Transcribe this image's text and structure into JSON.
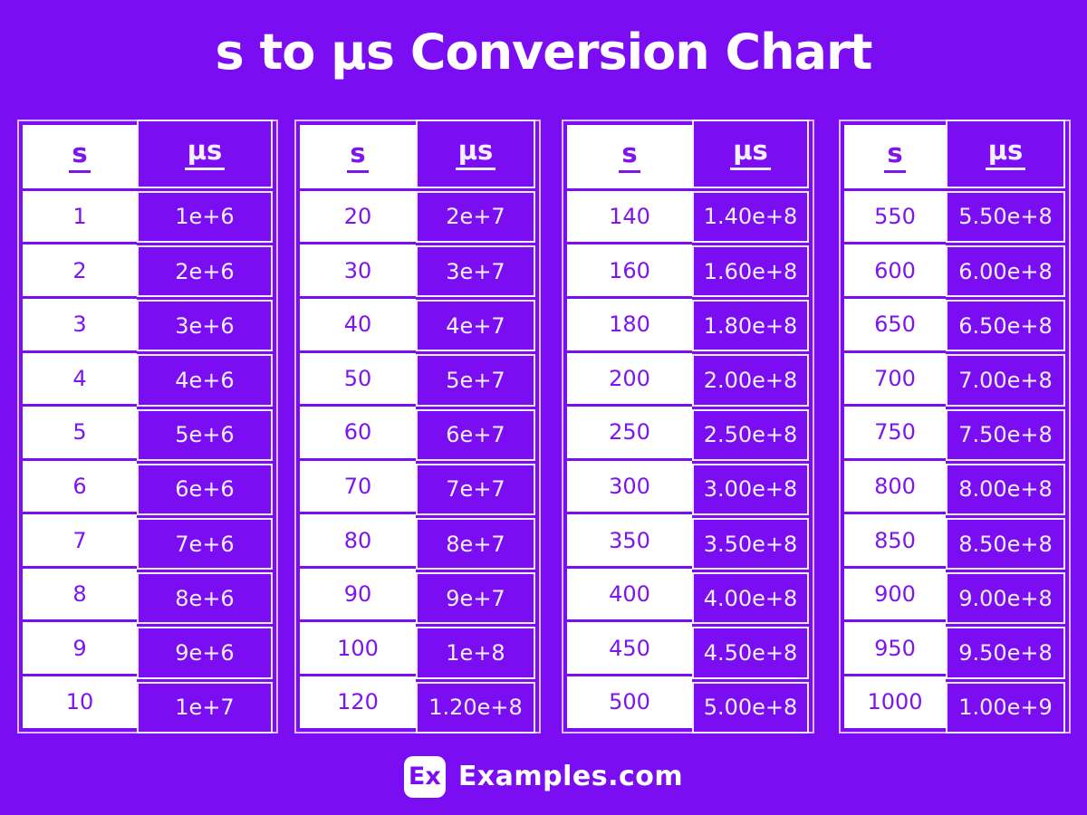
{
  "page": {
    "title": "s to µs Conversion Chart",
    "background_color": "#7A0DF2",
    "cell_purple": "#7A0DF2",
    "text_purple": "#7E14F0",
    "text_white": "#F4EFFA"
  },
  "footer": {
    "logo_text": "Ex",
    "brand": "Examples.com"
  },
  "chart_data": {
    "type": "table",
    "title": "s to µs Conversion Chart",
    "columns": [
      "s",
      "µs"
    ],
    "tables": [
      {
        "rows": [
          {
            "s": "1",
            "us": "1e+6"
          },
          {
            "s": "2",
            "us": "2e+6"
          },
          {
            "s": "3",
            "us": "3e+6"
          },
          {
            "s": "4",
            "us": "4e+6"
          },
          {
            "s": "5",
            "us": "5e+6"
          },
          {
            "s": "6",
            "us": "6e+6"
          },
          {
            "s": "7",
            "us": "7e+6"
          },
          {
            "s": "8",
            "us": "8e+6"
          },
          {
            "s": "9",
            "us": "9e+6"
          },
          {
            "s": "10",
            "us": "1e+7"
          }
        ]
      },
      {
        "rows": [
          {
            "s": "20",
            "us": "2e+7"
          },
          {
            "s": "30",
            "us": "3e+7"
          },
          {
            "s": "40",
            "us": "4e+7"
          },
          {
            "s": "50",
            "us": "5e+7"
          },
          {
            "s": "60",
            "us": "6e+7"
          },
          {
            "s": "70",
            "us": "7e+7"
          },
          {
            "s": "80",
            "us": "8e+7"
          },
          {
            "s": "90",
            "us": "9e+7"
          },
          {
            "s": "100",
            "us": "1e+8"
          },
          {
            "s": "120",
            "us": "1.20e+8"
          }
        ]
      },
      {
        "rows": [
          {
            "s": "140",
            "us": "1.40e+8"
          },
          {
            "s": "160",
            "us": "1.60e+8"
          },
          {
            "s": "180",
            "us": "1.80e+8"
          },
          {
            "s": "200",
            "us": "2.00e+8"
          },
          {
            "s": "250",
            "us": "2.50e+8"
          },
          {
            "s": "300",
            "us": "3.00e+8"
          },
          {
            "s": "350",
            "us": "3.50e+8"
          },
          {
            "s": "400",
            "us": "4.00e+8"
          },
          {
            "s": "450",
            "us": "4.50e+8"
          },
          {
            "s": "500",
            "us": "5.00e+8"
          }
        ]
      },
      {
        "rows": [
          {
            "s": "550",
            "us": "5.50e+8"
          },
          {
            "s": "600",
            "us": "6.00e+8"
          },
          {
            "s": "650",
            "us": "6.50e+8"
          },
          {
            "s": "700",
            "us": "7.00e+8"
          },
          {
            "s": "750",
            "us": "7.50e+8"
          },
          {
            "s": "800",
            "us": "8.00e+8"
          },
          {
            "s": "850",
            "us": "8.50e+8"
          },
          {
            "s": "900",
            "us": "9.00e+8"
          },
          {
            "s": "950",
            "us": "9.50e+8"
          },
          {
            "s": "1000",
            "us": "1.00e+9"
          }
        ]
      }
    ]
  }
}
